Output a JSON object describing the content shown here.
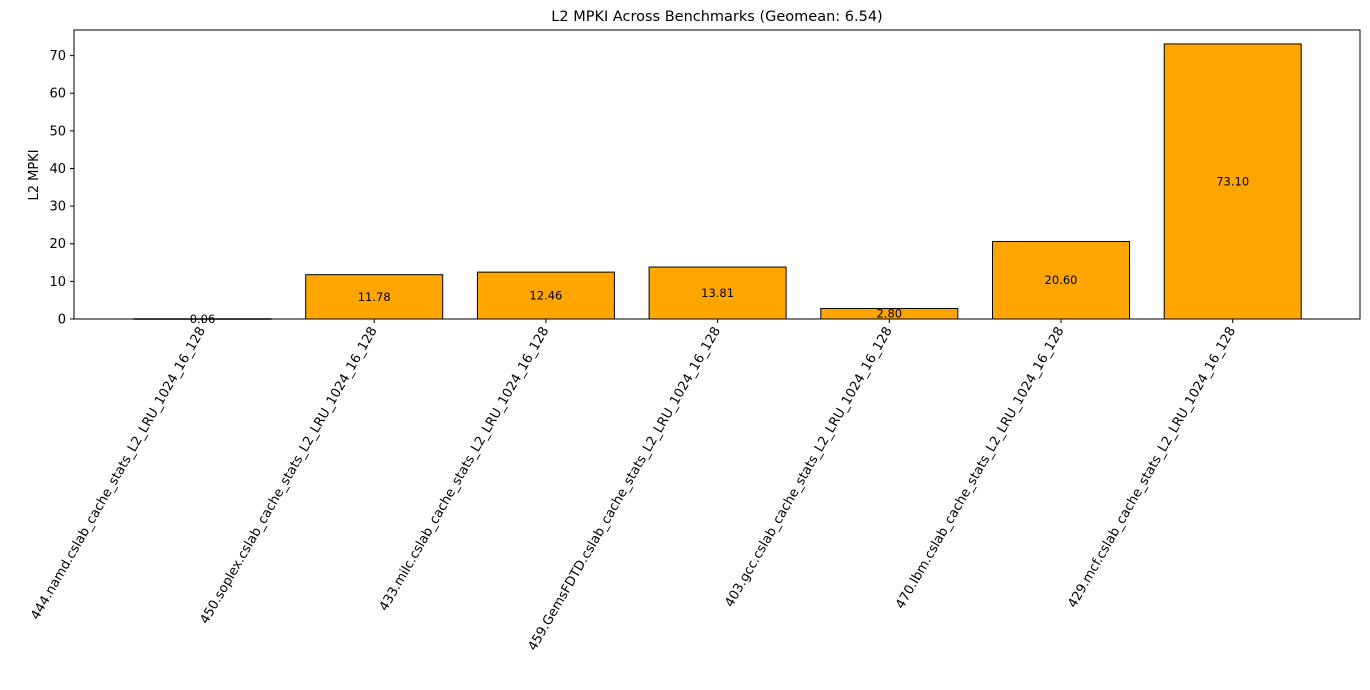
{
  "chart_data": {
    "type": "bar",
    "title": "L2 MPKI Across Benchmarks (Geomean: 6.54)",
    "xlabel": "",
    "ylabel": "L2 MPKI",
    "categories": [
      "444.namd.cslab_cache_stats_L2_LRU_1024_16_128",
      "450.soplex.cslab_cache_stats_L2_LRU_1024_16_128",
      "433.milc.cslab_cache_stats_L2_LRU_1024_16_128",
      "459.GemsFDTD.cslab_cache_stats_L2_LRU_1024_16_128",
      "403.gcc.cslab_cache_stats_L2_LRU_1024_16_128",
      "470.lbm.cslab_cache_stats_L2_LRU_1024_16_128",
      "429.mcf.cslab_cache_stats_L2_LRU_1024_16_128"
    ],
    "values": [
      0.06,
      11.78,
      12.46,
      13.81,
      2.8,
      20.6,
      73.1
    ],
    "data_labels": [
      "0.06",
      "11.78",
      "12.46",
      "13.81",
      "2.80",
      "20.60",
      "73.10"
    ],
    "ylim": [
      0,
      76.8
    ],
    "yticks": [
      0,
      10,
      20,
      30,
      40,
      50,
      60,
      70
    ],
    "grid": false,
    "legend": "none",
    "colors": {
      "bar_fill": "#FFA500",
      "bar_edge": "#000000",
      "axis": "#000000",
      "background": "#FFFFFF"
    }
  }
}
